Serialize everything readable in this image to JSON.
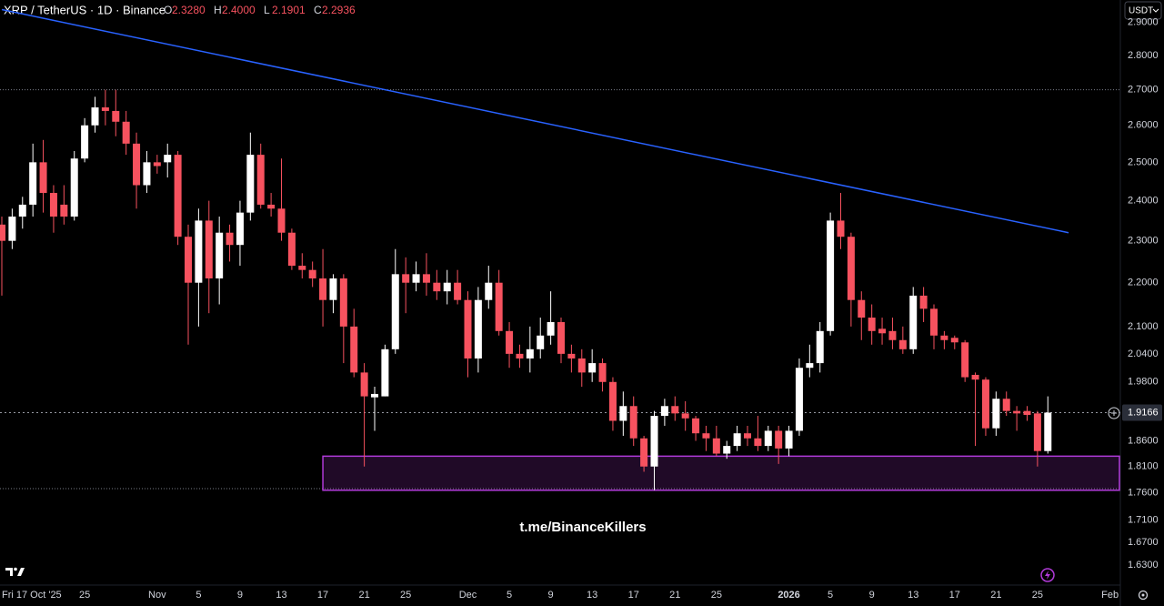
{
  "chart_data": {
    "type": "candlestick",
    "title": "XRP / TetherUS · 1D · Binance",
    "ohlc_header": [
      {
        "label": "O",
        "value": "2.3280"
      },
      {
        "label": "H",
        "value": "2.4000"
      },
      {
        "label": "L",
        "value": "2.1901"
      },
      {
        "label": "C",
        "value": "2.2936"
      }
    ],
    "currency": "USDT",
    "watermark": "t.me/BinanceKillers",
    "categories": [
      "Fri 17 Oct '25",
      null,
      null,
      null,
      null,
      null,
      null,
      null,
      "25",
      null,
      null,
      null,
      null,
      null,
      null,
      "Nov",
      null,
      null,
      null,
      "5",
      null,
      null,
      null,
      "9",
      null,
      null,
      null,
      "13",
      null,
      null,
      null,
      "17",
      null,
      null,
      null,
      "21",
      null,
      null,
      null,
      "25",
      null,
      null,
      null,
      null,
      null,
      "Dec",
      null,
      null,
      null,
      "5",
      null,
      null,
      null,
      "9",
      null,
      null,
      null,
      "13",
      null,
      null,
      null,
      "17",
      null,
      null,
      null,
      "21",
      null,
      null,
      null,
      "25",
      null,
      null,
      null,
      null,
      null,
      null,
      "2026",
      null,
      null,
      null,
      "5",
      null,
      null,
      null,
      "9",
      null,
      null,
      null,
      "13",
      null,
      null,
      null,
      "17",
      null,
      null,
      null,
      "21",
      null,
      null,
      null,
      "25",
      null,
      null,
      null,
      null,
      null,
      null,
      "Feb"
    ],
    "open": [
      2.34,
      2.3,
      2.36,
      2.39,
      2.5,
      2.42,
      2.39,
      2.36,
      2.51,
      2.6,
      2.65,
      2.64,
      2.61,
      2.55,
      2.44,
      2.5,
      2.5,
      2.52,
      2.31,
      2.2,
      2.35,
      2.21,
      2.32,
      2.29,
      2.37,
      2.52,
      2.39,
      2.38,
      2.32,
      2.24,
      2.23,
      2.21,
      2.16,
      2.21,
      2.1,
      2.0,
      1.948,
      1.95,
      2.05,
      2.22,
      2.2,
      2.22,
      2.2,
      2.18,
      2.2,
      2.16,
      2.03,
      2.16,
      2.2,
      2.09,
      2.04,
      2.03,
      2.05,
      2.08,
      2.11,
      2.04,
      2.03,
      2.0,
      2.02,
      1.98,
      1.9,
      1.93,
      1.865,
      1.81,
      1.91,
      1.93,
      1.915,
      1.905,
      1.875,
      1.865,
      1.835,
      1.85,
      1.875,
      1.865,
      1.85,
      1.88,
      1.845,
      1.88,
      2.01,
      2.02,
      2.09,
      2.35,
      2.31,
      2.16,
      2.12,
      2.095,
      2.09,
      2.07,
      2.05,
      2.17,
      2.14,
      2.08,
      2.075,
      2.065,
      1.995,
      1.985,
      1.885,
      1.945,
      1.92,
      1.92,
      1.915,
      1.84,
      null,
      null,
      null,
      null,
      null,
      null
    ],
    "high": [
      2.36,
      2.38,
      2.41,
      2.55,
      2.56,
      2.44,
      2.44,
      2.53,
      2.62,
      2.68,
      2.7,
      2.7,
      2.64,
      2.58,
      2.53,
      2.52,
      2.55,
      2.53,
      2.34,
      2.38,
      2.4,
      2.36,
      2.34,
      2.4,
      2.58,
      2.55,
      2.42,
      2.51,
      2.33,
      2.27,
      2.25,
      2.28,
      2.22,
      2.22,
      2.14,
      2.02,
      1.97,
      2.06,
      2.28,
      2.26,
      2.25,
      2.27,
      2.23,
      2.23,
      2.23,
      2.18,
      2.19,
      2.24,
      2.23,
      2.11,
      2.06,
      2.1,
      2.12,
      2.18,
      2.12,
      2.06,
      2.05,
      2.05,
      2.03,
      1.99,
      1.96,
      1.95,
      1.87,
      1.92,
      1.945,
      1.95,
      1.94,
      1.91,
      1.89,
      1.89,
      1.86,
      1.89,
      1.89,
      1.91,
      1.89,
      1.89,
      1.89,
      2.03,
      2.06,
      2.11,
      2.37,
      2.42,
      2.32,
      2.18,
      2.15,
      2.12,
      2.12,
      2.1,
      2.19,
      2.19,
      2.15,
      2.09,
      2.08,
      2.07,
      2.0,
      1.99,
      1.96,
      1.96,
      1.93,
      1.93,
      1.92,
      1.95,
      null,
      null,
      null,
      null,
      null,
      null
    ],
    "low": [
      2.17,
      2.28,
      2.33,
      2.36,
      2.37,
      2.32,
      2.34,
      2.35,
      2.5,
      2.58,
      2.6,
      2.57,
      2.52,
      2.38,
      2.42,
      2.47,
      2.46,
      2.29,
      2.06,
      2.1,
      2.13,
      2.15,
      2.25,
      2.24,
      2.35,
      2.38,
      2.36,
      2.3,
      2.23,
      2.21,
      2.19,
      2.1,
      2.13,
      2.02,
      1.99,
      1.81,
      1.88,
      1.95,
      2.04,
      2.13,
      2.18,
      2.17,
      2.16,
      2.15,
      2.15,
      1.99,
      2.0,
      2.14,
      2.08,
      2.01,
      2.01,
      2.0,
      2.03,
      2.06,
      2.02,
      2.0,
      1.97,
      1.98,
      1.96,
      1.88,
      1.87,
      1.85,
      1.8,
      1.765,
      1.89,
      1.9,
      1.88,
      1.86,
      1.84,
      1.83,
      1.825,
      1.84,
      1.85,
      1.84,
      1.84,
      1.815,
      1.83,
      1.87,
      1.99,
      2.0,
      2.08,
      2.28,
      2.1,
      2.07,
      2.06,
      2.06,
      2.05,
      2.04,
      2.04,
      2.11,
      2.05,
      2.05,
      2.05,
      1.98,
      1.85,
      1.87,
      1.87,
      1.91,
      1.88,
      1.9,
      1.81,
      1.835,
      null,
      null,
      null,
      null,
      null,
      null
    ],
    "close": [
      2.3,
      2.36,
      2.39,
      2.5,
      2.42,
      2.36,
      2.36,
      2.51,
      2.6,
      2.65,
      2.64,
      2.61,
      2.55,
      2.44,
      2.5,
      2.49,
      2.52,
      2.31,
      2.2,
      2.35,
      2.21,
      2.32,
      2.29,
      2.37,
      2.52,
      2.39,
      2.38,
      2.32,
      2.24,
      2.23,
      2.21,
      2.16,
      2.21,
      2.1,
      2.0,
      1.95,
      1.955,
      2.05,
      2.22,
      2.2,
      2.22,
      2.2,
      2.18,
      2.2,
      2.16,
      2.03,
      2.16,
      2.2,
      2.09,
      2.04,
      2.03,
      2.05,
      2.08,
      2.11,
      2.04,
      2.03,
      2.0,
      2.02,
      1.98,
      1.9,
      1.93,
      1.865,
      1.81,
      1.91,
      1.93,
      1.915,
      1.905,
      1.875,
      1.865,
      1.835,
      1.85,
      1.875,
      1.865,
      1.85,
      1.88,
      1.845,
      1.88,
      2.01,
      2.02,
      2.09,
      2.35,
      2.31,
      2.16,
      2.12,
      2.09,
      2.085,
      2.07,
      2.05,
      2.17,
      2.14,
      2.08,
      2.07,
      2.065,
      1.99,
      1.985,
      1.885,
      1.945,
      1.92,
      1.915,
      1.912,
      1.84,
      1.9166,
      null,
      null,
      null,
      null,
      null,
      null
    ],
    "up_color": "#ffffff",
    "down_color": "#f7525f",
    "log_scale": true,
    "grid": false,
    "ylim": [
      1.596,
      2.97
    ],
    "yticks": [
      {
        "value": 2.9,
        "label": "2.9000"
      },
      {
        "value": 2.8,
        "label": "2.8000"
      },
      {
        "value": 2.7,
        "label": "2.7000"
      },
      {
        "value": 2.6,
        "label": "2.6000"
      },
      {
        "value": 2.5,
        "label": "2.5000"
      },
      {
        "value": 2.4,
        "label": "2.4000"
      },
      {
        "value": 2.3,
        "label": "2.3000"
      },
      {
        "value": 2.2,
        "label": "2.2000"
      },
      {
        "value": 2.1,
        "label": "2.1000"
      },
      {
        "value": 2.04,
        "label": "2.0400"
      },
      {
        "value": 1.98,
        "label": "1.9800"
      },
      {
        "value": 1.86,
        "label": "1.8600"
      },
      {
        "value": 1.81,
        "label": "1.8100"
      },
      {
        "value": 1.76,
        "label": "1.7600"
      },
      {
        "value": 1.71,
        "label": "1.7100"
      },
      {
        "value": 1.67,
        "label": "1.6700"
      },
      {
        "value": 1.63,
        "label": "1.6300"
      }
    ],
    "last_price": 1.9166,
    "trendline": {
      "x": [
        0,
        103
      ],
      "y": [
        2.94,
        2.32
      ],
      "color": "#2962ff"
    },
    "zone": {
      "x": [
        31,
        108
      ],
      "y": [
        1.83,
        1.765
      ],
      "color": "#b03ad8"
    },
    "levels": [
      2.7,
      1.768
    ]
  }
}
